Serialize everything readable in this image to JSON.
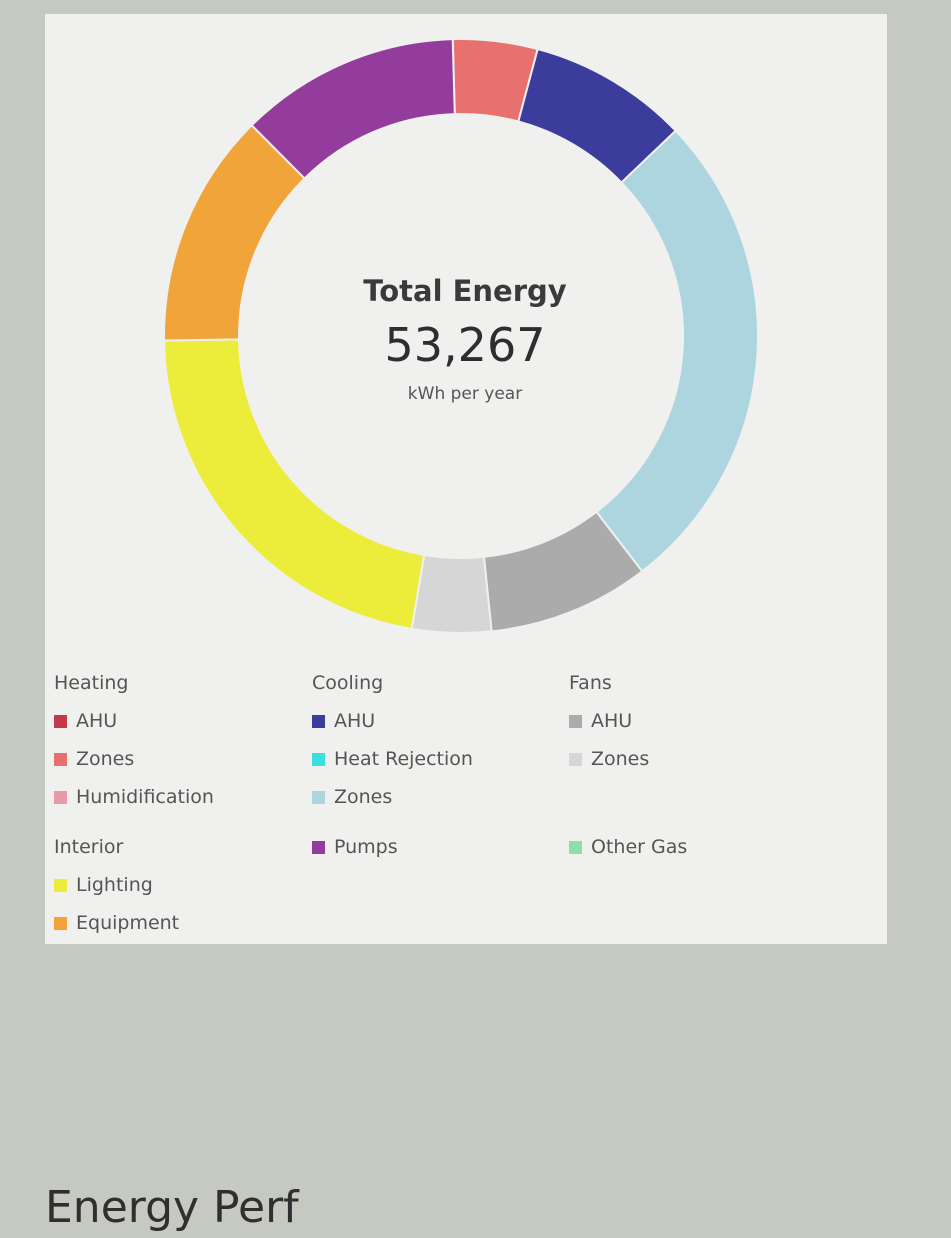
{
  "chart_data": {
    "type": "pie",
    "subtype": "donut",
    "center": {
      "title": "Total Energy",
      "value": "53,267",
      "unit": "kWh per year"
    },
    "slices": [
      {
        "group": "Heating",
        "name": "Zones",
        "value": 4.6,
        "color": "#e8706e"
      },
      {
        "group": "Cooling",
        "name": "AHU",
        "value": 8.7,
        "color": "#3c3c9c"
      },
      {
        "group": "Cooling",
        "name": "Zones",
        "value": 26.7,
        "color": "#add5df"
      },
      {
        "group": "Fans",
        "name": "AHU",
        "value": 8.8,
        "color": "#ababab"
      },
      {
        "group": "Fans",
        "name": "Zones",
        "value": 4.3,
        "color": "#d6d6d6"
      },
      {
        "group": "Interior",
        "name": "Lighting",
        "value": 22.1,
        "color": "#ecec3a"
      },
      {
        "group": "Interior",
        "name": "Equipment",
        "value": 12.8,
        "color": "#f0a43a"
      },
      {
        "group": "Pumps",
        "name": "Pumps",
        "value": 12.0,
        "color": "#943c9c"
      }
    ],
    "legend": [
      {
        "heading": "Heating",
        "items": [
          {
            "label": "AHU",
            "color": "#c43a4a"
          },
          {
            "label": "Zones",
            "color": "#e8706e"
          },
          {
            "label": "Humidification",
            "color": "#e89aa8"
          }
        ]
      },
      {
        "heading": "Cooling",
        "items": [
          {
            "label": "AHU",
            "color": "#3c3c9c"
          },
          {
            "label": "Heat Rejection",
            "color": "#3ae0e0"
          },
          {
            "label": "Zones",
            "color": "#add5df"
          }
        ]
      },
      {
        "heading": "Fans",
        "items": [
          {
            "label": "AHU",
            "color": "#ababab"
          },
          {
            "label": "Zones",
            "color": "#d6d6d6"
          }
        ]
      },
      {
        "heading": "Interior",
        "items": [
          {
            "label": "Lighting",
            "color": "#ecec3a"
          },
          {
            "label": "Equipment",
            "color": "#f0a43a"
          }
        ]
      },
      {
        "heading": "",
        "items": [
          {
            "label": "Pumps",
            "color": "#943c9c"
          }
        ]
      },
      {
        "heading": "",
        "items": [
          {
            "label": "Other Gas",
            "color": "#8ce0a0"
          }
        ]
      }
    ]
  },
  "footer": {
    "text": "Energy Perf"
  }
}
